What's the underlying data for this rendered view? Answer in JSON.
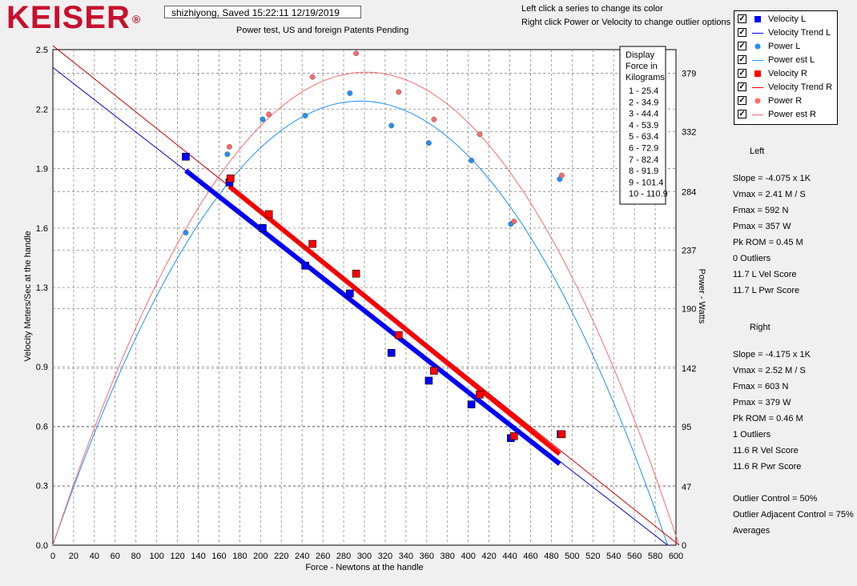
{
  "header": {
    "logo": "KEISER",
    "registered_mark": "®",
    "status": "shizhiyong, Saved  15:22:11 12/19/2019",
    "subtitle": "Power test, US and foreign Patents Pending",
    "hint1": "Left click a series to change its color",
    "hint2": "Right click Power or Velocity to change outlier options"
  },
  "legend": [
    {
      "label": "Velocity L",
      "color": "#0000ff",
      "symbol": "square"
    },
    {
      "label": "Velocity Trend L",
      "color": "#0000ff",
      "symbol": "line"
    },
    {
      "label": "Power L",
      "color": "#1e90ff",
      "symbol": "circle"
    },
    {
      "label": "Power est L",
      "color": "#1e90ff",
      "symbol": "line"
    },
    {
      "label": "Velocity R",
      "color": "#ff0000",
      "symbol": "square"
    },
    {
      "label": "Velocity Trend R",
      "color": "#ff0000",
      "symbol": "line"
    },
    {
      "label": "Power R",
      "color": "#ff6b6b",
      "symbol": "circle"
    },
    {
      "label": "Power est R",
      "color": "#ff6b6b",
      "symbol": "line"
    }
  ],
  "left_stats": {
    "title": "Left",
    "lines": [
      "Slope = -4.075 x 1K",
      "Vmax = 2.41 M / S",
      "Fmax =  592 N",
      "Pmax =  357 W",
      "Pk ROM = 0.45 M",
      "0 Outliers",
      "11.7 L Vel Score",
      "11.7 L Pwr Score"
    ]
  },
  "right_stats": {
    "title": "Right",
    "lines": [
      "Slope = -4.175 x 1K",
      "Vmax = 2.52 M / S",
      "Fmax =  603 N",
      "Pmax =  379 W",
      "Pk ROM = 0.46 M",
      "1 Outliers",
      "11.6 R Vel Score",
      "11.6 R Pwr Score"
    ]
  },
  "controls": [
    "Outlier Control = 50%",
    "Outlier Adjacent Control = 75%",
    "Averages"
  ],
  "force_box": {
    "title_lines": [
      "Display",
      "Force in",
      "Kilograms"
    ],
    "items": [
      "1 - 25.4",
      "2 - 34.9",
      "3 - 44.4",
      "4 - 53.9",
      "5 - 63.4",
      "6 - 72.9",
      "7 - 82.4",
      "8 - 91.9",
      "9 - 101.4",
      "10 - 110.9"
    ]
  },
  "chart_data": {
    "type": "scatter",
    "xlabel": "Force - Newtons at the handle",
    "ylabel": "Velocity Meters/Sec at the handle",
    "y2label": "Power - Watts",
    "xlim": [
      0,
      600
    ],
    "ylim": [
      0,
      2.5
    ],
    "y2lim": [
      0,
      398
    ],
    "x_ticks": [
      0,
      20,
      40,
      60,
      80,
      100,
      120,
      140,
      160,
      180,
      200,
      220,
      240,
      260,
      280,
      300,
      320,
      340,
      360,
      380,
      400,
      420,
      440,
      460,
      480,
      500,
      520,
      540,
      560,
      580,
      600
    ],
    "y_ticks": [
      "0.0",
      "0.3",
      "0.6",
      "0.9",
      "1.3",
      "1.6",
      "1.9",
      "2.2",
      "2.5"
    ],
    "y_tick_values": [
      0,
      0.3,
      0.6,
      0.9,
      1.3,
      1.6,
      1.9,
      2.2,
      2.5
    ],
    "y2_ticks": [
      "0",
      "47",
      "95",
      "142",
      "190",
      "237",
      "284",
      "332",
      "379"
    ],
    "y2_tick_values": [
      0,
      47,
      95,
      142,
      190,
      237,
      284,
      332,
      379
    ],
    "series": [
      {
        "name": "Velocity L",
        "kind": "square",
        "color": "#0000ff",
        "axis": "y",
        "points": [
          [
            128,
            1.96
          ],
          [
            170,
            1.83
          ],
          [
            202,
            1.6
          ],
          [
            243,
            1.41
          ],
          [
            286,
            1.27
          ],
          [
            326,
            0.97
          ],
          [
            362,
            0.83
          ],
          [
            403,
            0.71
          ],
          [
            441,
            0.54
          ],
          [
            489,
            0.56
          ]
        ]
      },
      {
        "name": "Velocity R",
        "kind": "square",
        "color": "#ff0000",
        "axis": "y",
        "points": [
          [
            171,
            1.85
          ],
          [
            208,
            1.67
          ],
          [
            250,
            1.52
          ],
          [
            292,
            1.37
          ],
          [
            333,
            1.06
          ],
          [
            367,
            0.88
          ],
          [
            411,
            0.76
          ],
          [
            444,
            0.55
          ],
          [
            490,
            0.56
          ]
        ]
      },
      {
        "name": "Power L",
        "kind": "circle",
        "color": "#1e90ff",
        "axis": "y2",
        "points": [
          [
            128,
            251
          ],
          [
            168,
            314
          ],
          [
            202,
            342
          ],
          [
            243,
            345
          ],
          [
            286,
            363
          ],
          [
            326,
            337
          ],
          [
            362,
            323
          ],
          [
            403,
            309
          ],
          [
            441,
            258
          ],
          [
            488,
            294
          ]
        ]
      },
      {
        "name": "Power R",
        "kind": "circle",
        "color": "#ff6b6b",
        "axis": "y2",
        "points": [
          [
            170,
            320
          ],
          [
            208,
            346
          ],
          [
            250,
            376
          ],
          [
            292,
            395
          ],
          [
            333,
            364
          ],
          [
            367,
            342
          ],
          [
            411,
            330
          ],
          [
            444,
            260
          ],
          [
            490,
            297
          ]
        ]
      },
      {
        "name": "Velocity Trend L",
        "kind": "thick-line",
        "color": "#0000ff",
        "axis": "y",
        "points": [
          [
            128,
            1.89
          ],
          [
            488,
            0.41
          ]
        ]
      },
      {
        "name": "Velocity Trend R",
        "kind": "thick-line",
        "color": "#ff0000",
        "axis": "y",
        "points": [
          [
            170,
            1.81
          ],
          [
            488,
            0.46
          ]
        ]
      },
      {
        "name": "Velocity Trend L (extended)",
        "kind": "thin-line",
        "color": "#0000cc",
        "axis": "y",
        "points": [
          [
            0,
            2.41
          ],
          [
            592,
            0
          ]
        ]
      },
      {
        "name": "Velocity Trend R (extended)",
        "kind": "thin-line",
        "color": "#cc0000",
        "axis": "y",
        "points": [
          [
            0,
            2.52
          ],
          [
            603,
            0
          ]
        ]
      },
      {
        "name": "Power est L",
        "kind": "curve",
        "color": "#1e90ff",
        "axis": "y2",
        "vmax": 2.41,
        "fmax": 592
      },
      {
        "name": "Power est R",
        "kind": "curve",
        "color": "#ff6b6b",
        "axis": "y2",
        "vmax": 2.52,
        "fmax": 603
      }
    ]
  }
}
